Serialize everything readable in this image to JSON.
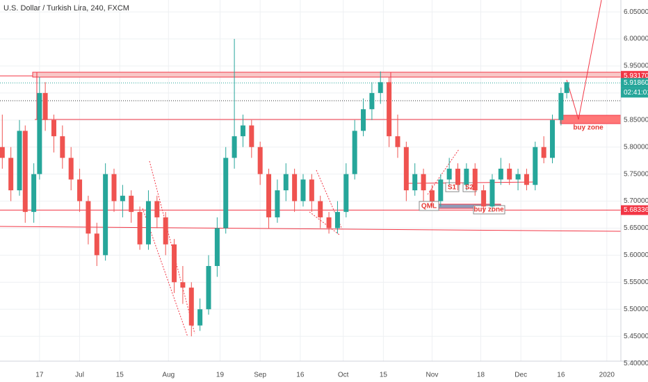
{
  "chart_data": {
    "type": "candlestick",
    "title": "U.S. Dollar / Turkish Lira, 240, FXCM",
    "x": [
      -13,
      -10,
      -7,
      -5,
      -2,
      0,
      2,
      5,
      8,
      11,
      14,
      17,
      20,
      23,
      26,
      29,
      32,
      35,
      38,
      41,
      44,
      47,
      50,
      53,
      56,
      59,
      62,
      65,
      68,
      71,
      74,
      77,
      80,
      83,
      86,
      89,
      92,
      95,
      98,
      101,
      104,
      107,
      110,
      113,
      116,
      119,
      122,
      125,
      128,
      131,
      134,
      137,
      140,
      143,
      146,
      149,
      152,
      155,
      158,
      161,
      164,
      167,
      170,
      173,
      176,
      179,
      182,
      184
    ],
    "open": [
      5.8,
      5.78,
      5.72,
      5.83,
      5.68,
      5.75,
      5.9,
      5.85,
      5.82,
      5.78,
      5.74,
      5.7,
      5.64,
      5.6,
      5.75,
      5.7,
      5.71,
      5.68,
      5.62,
      5.7,
      5.67,
      5.62,
      5.55,
      5.54,
      5.47,
      5.5,
      5.58,
      5.65,
      5.78,
      5.82,
      5.84,
      5.8,
      5.75,
      5.67,
      5.72,
      5.75,
      5.7,
      5.74,
      5.7,
      5.67,
      5.65,
      5.68,
      5.75,
      5.83,
      5.87,
      5.9,
      5.92,
      5.82,
      5.8,
      5.72,
      5.75,
      5.72,
      5.7,
      5.74,
      5.76,
      5.73,
      5.76,
      5.72,
      5.69,
      5.74,
      5.76,
      5.74,
      5.75,
      5.73,
      5.8,
      5.78,
      5.85,
      5.9
    ],
    "high": [
      5.86,
      5.8,
      5.85,
      5.84,
      5.77,
      5.93,
      5.92,
      5.86,
      5.84,
      5.8,
      5.76,
      5.71,
      5.66,
      5.77,
      5.76,
      5.73,
      5.72,
      5.69,
      5.72,
      5.71,
      5.68,
      5.63,
      5.58,
      5.55,
      5.52,
      5.6,
      5.67,
      5.8,
      6.0,
      5.86,
      5.85,
      5.81,
      5.76,
      5.74,
      5.77,
      5.76,
      5.75,
      5.75,
      5.71,
      5.68,
      5.7,
      5.77,
      5.85,
      5.89,
      5.92,
      5.94,
      5.93,
      5.86,
      5.81,
      5.77,
      5.76,
      5.73,
      5.75,
      5.78,
      5.77,
      5.77,
      5.77,
      5.73,
      5.75,
      5.78,
      5.77,
      5.76,
      5.76,
      5.81,
      5.82,
      5.86,
      5.91,
      5.92
    ],
    "low": [
      5.76,
      5.7,
      5.71,
      5.66,
      5.66,
      5.74,
      5.83,
      5.79,
      5.76,
      5.72,
      5.68,
      5.62,
      5.58,
      5.59,
      5.68,
      5.67,
      5.66,
      5.61,
      5.61,
      5.65,
      5.6,
      5.53,
      5.51,
      5.45,
      5.46,
      5.49,
      5.56,
      5.64,
      5.76,
      5.8,
      5.78,
      5.73,
      5.65,
      5.66,
      5.7,
      5.68,
      5.69,
      5.68,
      5.65,
      5.64,
      5.64,
      5.67,
      5.74,
      5.82,
      5.85,
      5.88,
      5.8,
      5.78,
      5.7,
      5.71,
      5.7,
      5.69,
      5.69,
      5.73,
      5.72,
      5.72,
      5.71,
      5.68,
      5.68,
      5.73,
      5.73,
      5.72,
      5.72,
      5.72,
      5.77,
      5.77,
      5.84,
      5.89
    ],
    "close": [
      5.78,
      5.72,
      5.83,
      5.68,
      5.75,
      5.9,
      5.85,
      5.82,
      5.78,
      5.74,
      5.7,
      5.64,
      5.6,
      5.75,
      5.7,
      5.71,
      5.68,
      5.62,
      5.7,
      5.67,
      5.62,
      5.55,
      5.54,
      5.47,
      5.5,
      5.58,
      5.65,
      5.78,
      5.82,
      5.84,
      5.8,
      5.75,
      5.67,
      5.72,
      5.75,
      5.7,
      5.74,
      5.7,
      5.67,
      5.65,
      5.68,
      5.75,
      5.83,
      5.87,
      5.9,
      5.92,
      5.82,
      5.8,
      5.72,
      5.75,
      5.72,
      5.7,
      5.74,
      5.76,
      5.73,
      5.76,
      5.72,
      5.69,
      5.74,
      5.76,
      5.74,
      5.75,
      5.73,
      5.8,
      5.78,
      5.85,
      5.9,
      5.92
    ],
    "up_color": "#26a69a",
    "down_color": "#ef5350",
    "xlim": [
      -13.8,
      202.9
    ],
    "xticks": [
      {
        "value": 0,
        "label": "17"
      },
      {
        "value": 14,
        "label": "Jul"
      },
      {
        "value": 28,
        "label": "15"
      },
      {
        "value": 45,
        "label": "Aug"
      },
      {
        "value": 63,
        "label": "19"
      },
      {
        "value": 77,
        "label": "Sep"
      },
      {
        "value": 91,
        "label": "16"
      },
      {
        "value": 106,
        "label": "Oct"
      },
      {
        "value": 120,
        "label": "15"
      },
      {
        "value": 137,
        "label": "Nov"
      },
      {
        "value": 154,
        "label": "18"
      },
      {
        "value": 168,
        "label": "Dec"
      },
      {
        "value": 182,
        "label": "16"
      },
      {
        "value": 198,
        "label": "2020"
      }
    ],
    "ylim": [
      5.404,
      6.072
    ],
    "yticks": [
      {
        "value": 5.4,
        "label": "5.40000"
      },
      {
        "value": 5.45,
        "label": "5.45000"
      },
      {
        "value": 5.5,
        "label": "5.50000"
      },
      {
        "value": 5.55,
        "label": "5.55000"
      },
      {
        "value": 5.6,
        "label": "5.60000"
      },
      {
        "value": 5.65,
        "label": "5.65000"
      },
      {
        "value": 5.7,
        "label": "5.70000"
      },
      {
        "value": 5.75,
        "label": "5.75000"
      },
      {
        "value": 5.8,
        "label": "5.80000"
      },
      {
        "value": 5.85,
        "label": "5.85000"
      },
      {
        "value": 5.9,
        "label": "5.90000"
      },
      {
        "value": 5.95,
        "label": "5.95000"
      },
      {
        "value": 6.0,
        "label": "6.00000"
      },
      {
        "value": 6.05,
        "label": "6.05000"
      }
    ],
    "grid": true,
    "levels": [
      {
        "value": 5.9317,
        "label": "5.93170",
        "color": "#f23645"
      },
      {
        "value": 5.9186,
        "label": "5.91860",
        "color": "#26a69a"
      },
      {
        "value": 5.68336,
        "label": "5.68336",
        "color": "#f23645"
      }
    ],
    "countdown": "02:41:01",
    "annotations": [
      "S1",
      "S2",
      "QML",
      "buy zone",
      "buy zone"
    ]
  }
}
